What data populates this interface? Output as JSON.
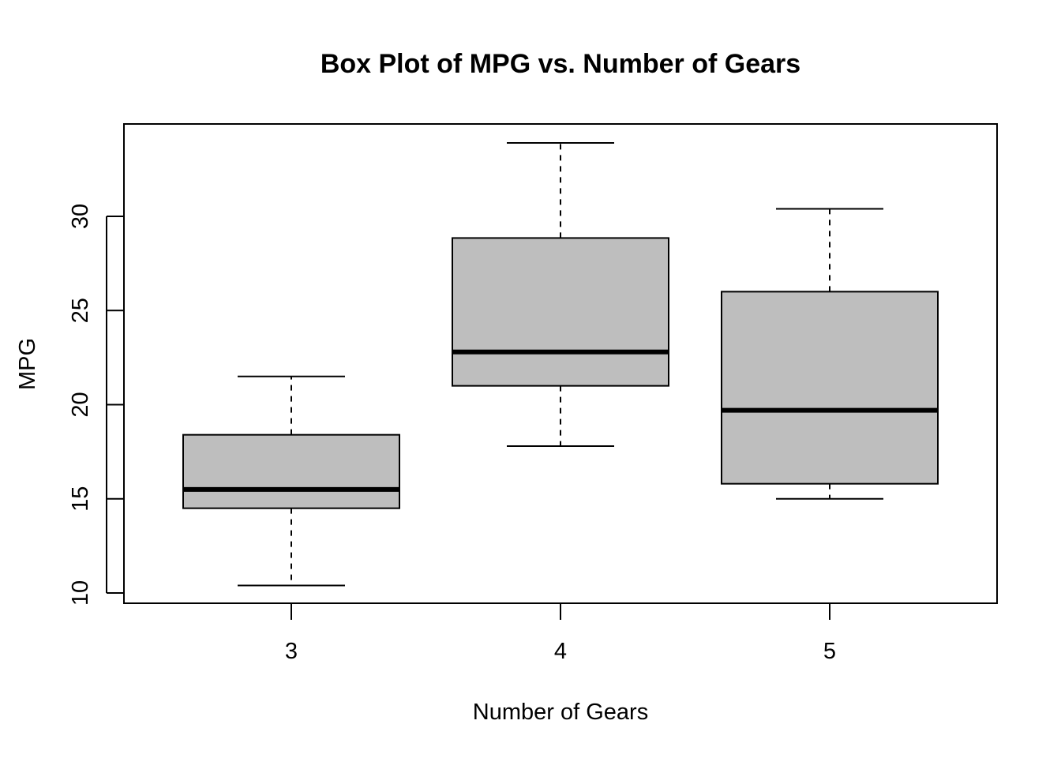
{
  "chart_data": {
    "type": "box",
    "title": "Box Plot of MPG vs. Number of Gears",
    "xlabel": "Number of Gears",
    "ylabel": "MPG",
    "categories": [
      "3",
      "4",
      "5"
    ],
    "yticks": [
      10,
      15,
      20,
      25,
      30
    ],
    "ylim": [
      9.5,
      34.9
    ],
    "grid": false,
    "legend": "none",
    "box_fill": "#bebebe",
    "series": [
      {
        "category": "3",
        "whisker_low": 10.4,
        "q1": 14.5,
        "median": 15.5,
        "q3": 18.4,
        "whisker_high": 21.5
      },
      {
        "category": "4",
        "whisker_low": 17.8,
        "q1": 21.0,
        "median": 22.8,
        "q3": 28.85,
        "whisker_high": 33.9
      },
      {
        "category": "5",
        "whisker_low": 15.0,
        "q1": 15.8,
        "median": 19.7,
        "q3": 26.0,
        "whisker_high": 30.4
      }
    ]
  }
}
